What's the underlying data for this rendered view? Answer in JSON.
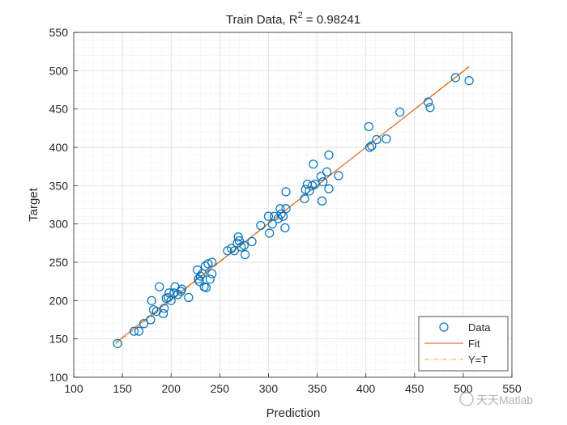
{
  "chart_data": {
    "type": "scatter",
    "title_main": "Train Data, R",
    "title_sup": "2",
    "title_value": " = 0.98241",
    "xlabel": "Prediction",
    "ylabel": "Target",
    "xlim": [
      100,
      550
    ],
    "ylim": [
      100,
      550
    ],
    "xticks": [
      100,
      150,
      200,
      250,
      300,
      350,
      400,
      450,
      500,
      550
    ],
    "yticks": [
      100,
      150,
      200,
      250,
      300,
      350,
      400,
      450,
      500,
      550
    ],
    "grid": true,
    "minor_grid": true,
    "legend_position": "bottom-right",
    "legend": [
      "Data",
      "Fit",
      "Y=T"
    ],
    "colors": {
      "data": "#0072BD",
      "fit": "#D95319",
      "yt": "#EDB120"
    },
    "points": [
      [
        145,
        144
      ],
      [
        162,
        160
      ],
      [
        167,
        160
      ],
      [
        172,
        170
      ],
      [
        179,
        175
      ],
      [
        180,
        200
      ],
      [
        182,
        188
      ],
      [
        185,
        186
      ],
      [
        188,
        218
      ],
      [
        192,
        183
      ],
      [
        193,
        190
      ],
      [
        195,
        203
      ],
      [
        197,
        204
      ],
      [
        198,
        210
      ],
      [
        200,
        200
      ],
      [
        203,
        210
      ],
      [
        204,
        218
      ],
      [
        207,
        208
      ],
      [
        210,
        212
      ],
      [
        211,
        215
      ],
      [
        218,
        204
      ],
      [
        227,
        240
      ],
      [
        228,
        228
      ],
      [
        229,
        225
      ],
      [
        230,
        232
      ],
      [
        232,
        235
      ],
      [
        234,
        218
      ],
      [
        235,
        245
      ],
      [
        236,
        217
      ],
      [
        238,
        248
      ],
      [
        240,
        228
      ],
      [
        242,
        250
      ],
      [
        242,
        235
      ],
      [
        258,
        265
      ],
      [
        262,
        268
      ],
      [
        265,
        265
      ],
      [
        268,
        275
      ],
      [
        269,
        283
      ],
      [
        270,
        278
      ],
      [
        272,
        270
      ],
      [
        275,
        272
      ],
      [
        276,
        260
      ],
      [
        283,
        277
      ],
      [
        292,
        298
      ],
      [
        300,
        310
      ],
      [
        301,
        288
      ],
      [
        304,
        300
      ],
      [
        306,
        310
      ],
      [
        310,
        307
      ],
      [
        312,
        320
      ],
      [
        313,
        313
      ],
      [
        315,
        310
      ],
      [
        317,
        295
      ],
      [
        318,
        320
      ],
      [
        318,
        342
      ],
      [
        337,
        333
      ],
      [
        338,
        345
      ],
      [
        340,
        352
      ],
      [
        342,
        343
      ],
      [
        345,
        350
      ],
      [
        346,
        378
      ],
      [
        348,
        352
      ],
      [
        354,
        362
      ],
      [
        355,
        330
      ],
      [
        356,
        355
      ],
      [
        360,
        368
      ],
      [
        362,
        390
      ],
      [
        362,
        346
      ],
      [
        372,
        363
      ],
      [
        403,
        427
      ],
      [
        404,
        400
      ],
      [
        406,
        402
      ],
      [
        411,
        410
      ],
      [
        421,
        411
      ],
      [
        435,
        446
      ],
      [
        464,
        459
      ],
      [
        466,
        452
      ],
      [
        492,
        491
      ],
      [
        506,
        487
      ]
    ],
    "fit": {
      "x": [
        143,
        506
      ],
      "y": [
        145,
        505
      ]
    },
    "yt": {
      "x": [
        143,
        506
      ],
      "y": [
        143,
        506
      ]
    }
  },
  "watermark": "天天Matlab"
}
